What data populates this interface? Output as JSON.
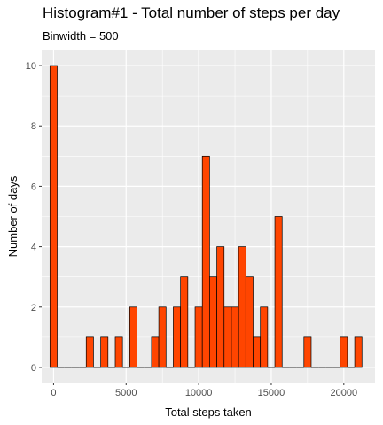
{
  "chart_data": {
    "type": "bar",
    "title": "Histogram#1 - Total number of steps per day",
    "subtitle": "Binwidth = 500",
    "xlabel": "Total steps taken",
    "ylabel": "Number of days",
    "binwidth": 500,
    "xlim": [
      -820,
      22150
    ],
    "ylim": [
      -0.5,
      10.5
    ],
    "xticks": [
      0,
      5000,
      10000,
      15000,
      20000
    ],
    "xtick_labels": [
      "0",
      "5000",
      "10000",
      "15000",
      "20000"
    ],
    "yticks": [
      0,
      2,
      4,
      6,
      8,
      10
    ],
    "ytick_labels": [
      "0",
      "2",
      "4",
      "6",
      "8",
      "10"
    ],
    "grid": true,
    "legend": "none",
    "bin_centers": [
      0,
      500,
      1000,
      1500,
      2000,
      2500,
      3000,
      3500,
      4000,
      4500,
      5000,
      5500,
      6000,
      6500,
      7000,
      7500,
      8000,
      8500,
      9000,
      9500,
      10000,
      10500,
      11000,
      11500,
      12000,
      12500,
      13000,
      13500,
      14000,
      14500,
      15000,
      15500,
      16000,
      16500,
      17000,
      17500,
      18000,
      18500,
      19000,
      19500,
      20000,
      20500,
      21000
    ],
    "values": [
      10,
      0,
      0,
      0,
      0,
      1,
      0,
      1,
      0,
      1,
      0,
      2,
      0,
      0,
      1,
      2,
      0,
      2,
      3,
      0,
      2,
      7,
      3,
      4,
      2,
      2,
      4,
      3,
      1,
      2,
      0,
      5,
      0,
      0,
      0,
      1,
      0,
      0,
      0,
      0,
      1,
      0,
      1
    ],
    "bar_fill": "#ff4500",
    "bar_outline": "#000000",
    "panel_background": "#ebebeb",
    "grid_color": "#ffffff"
  }
}
